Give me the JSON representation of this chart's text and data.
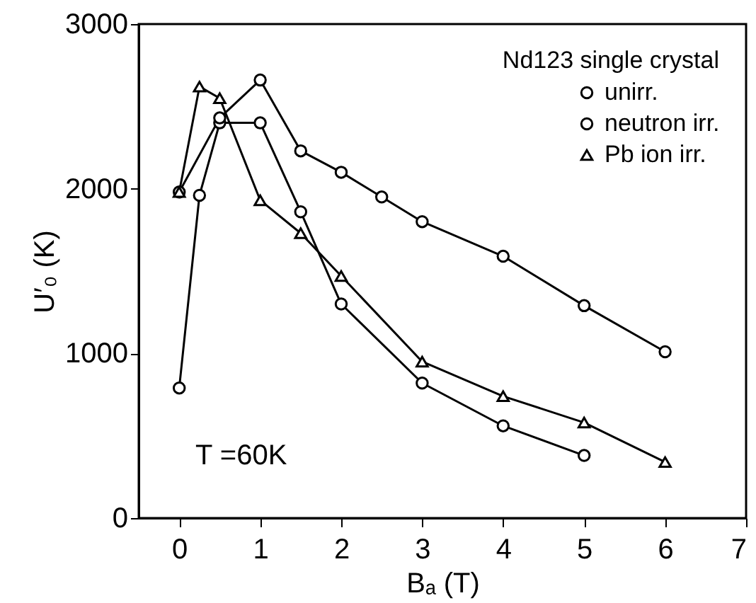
{
  "chart_data": {
    "type": "line",
    "xlabel": "Bₐ (T)",
    "ylabel": "U′₀ (K)",
    "legend_title": "Nd123 single crystal",
    "legend": "top right",
    "annotations": [
      "T =60K"
    ],
    "xlim": [
      -0.5,
      7
    ],
    "xticks": [
      0,
      1,
      2,
      3,
      4,
      5,
      6,
      7
    ],
    "ylim": [
      0,
      3000
    ],
    "yticks": [
      0,
      1000,
      2000,
      3000
    ],
    "series": [
      {
        "name": "unirr.",
        "color": "#000000",
        "marker": "circle",
        "x": [
          0,
          0.25,
          0.5,
          1,
          1.5,
          2,
          3,
          4,
          5
        ],
        "values": [
          790,
          1960,
          2400,
          2400,
          1860,
          1300,
          820,
          560,
          380
        ]
      },
      {
        "name": "neutron irr.",
        "color": "#000000",
        "marker": "circle",
        "x": [
          0,
          0.5,
          1,
          1.5,
          2,
          2.5,
          3,
          4,
          5,
          6
        ],
        "values": [
          1980,
          2430,
          2660,
          2230,
          2100,
          1950,
          1800,
          1590,
          1290,
          1010
        ]
      },
      {
        "name": "Pb ion irr.",
        "color": "#000000",
        "marker": "triangle",
        "x": [
          0,
          0.25,
          0.5,
          1,
          1.5,
          2,
          3,
          4,
          5,
          6
        ],
        "values": [
          1980,
          2620,
          2550,
          1930,
          1730,
          1470,
          950,
          740,
          580,
          340
        ]
      }
    ]
  }
}
